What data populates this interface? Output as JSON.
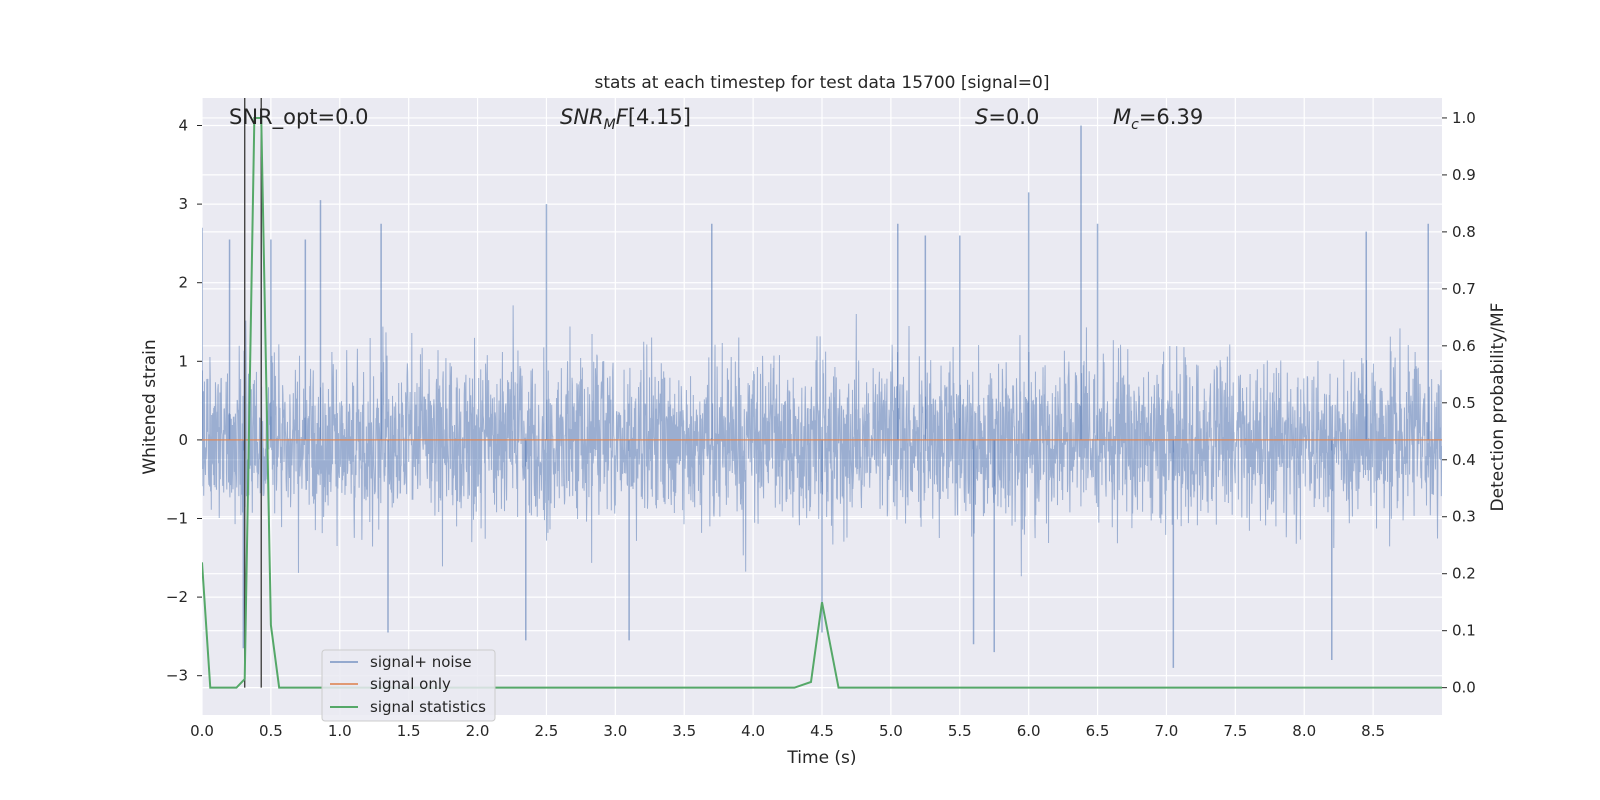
{
  "chart_data": {
    "type": "line",
    "title": "stats at each timestep for test data 15700 [signal=0]",
    "xlabel": "Time (s)",
    "ylabel_left": "Whitened strain",
    "ylabel_right": "Detection probability/MF",
    "xlim": [
      0.0,
      9.0
    ],
    "ylim_left": [
      -3.5,
      4.35
    ],
    "ylim_right": [
      -0.048,
      1.035
    ],
    "x_ticks": [
      "0.0",
      "0.5",
      "1.0",
      "1.5",
      "2.0",
      "2.5",
      "3.0",
      "3.5",
      "4.0",
      "4.5",
      "5.0",
      "5.5",
      "6.0",
      "6.5",
      "7.0",
      "7.5",
      "8.0",
      "8.5"
    ],
    "y_left_ticks": [
      "4",
      "3",
      "2",
      "1",
      "0",
      "−1",
      "−2",
      "−3"
    ],
    "y_right_ticks": [
      "1.0",
      "0.9",
      "0.8",
      "0.7",
      "0.6",
      "0.5",
      "0.4",
      "0.3",
      "0.2",
      "0.1",
      "0.0"
    ],
    "grid": true,
    "legend_location": "lower left",
    "colors": {
      "background": "#eaeaf2",
      "grid": "#ffffff",
      "noise": "#4c72b0",
      "signal": "#dd8452",
      "statistics": "#55a868",
      "marker_lines": "#444444"
    },
    "annotations": [
      {
        "id": "snr-opt",
        "text": "SNR_opt=0.0",
        "x": 0.18
      },
      {
        "id": "snr-mf",
        "text": "[4.15]",
        "x": 2.6
      },
      {
        "id": "s-value",
        "text": "=0.0",
        "x": 5.6
      },
      {
        "id": "mc-value",
        "text": "=6.39",
        "x": 6.6
      }
    ],
    "vertical_markers": [
      0.31,
      0.43
    ],
    "series": [
      {
        "name": "signal+ noise",
        "kind": "noise",
        "amplitude_envelope": {
          "typical_max": 1.8,
          "typical_min": -1.8
        },
        "peaks": [
          [
            0.0,
            2.7
          ],
          [
            0.2,
            2.55
          ],
          [
            0.43,
            3.6
          ],
          [
            0.5,
            2.55
          ],
          [
            0.75,
            2.55
          ],
          [
            0.86,
            3.05
          ],
          [
            1.3,
            2.75
          ],
          [
            2.5,
            3.0
          ],
          [
            3.7,
            2.75
          ],
          [
            5.05,
            2.75
          ],
          [
            5.25,
            2.6
          ],
          [
            5.5,
            2.6
          ],
          [
            6.0,
            3.15
          ],
          [
            6.38,
            4.0
          ],
          [
            6.5,
            2.75
          ],
          [
            8.45,
            2.65
          ],
          [
            8.9,
            2.75
          ],
          [
            1.35,
            -2.45
          ],
          [
            2.35,
            -2.55
          ],
          [
            3.1,
            -2.55
          ],
          [
            4.5,
            -2.45
          ],
          [
            5.6,
            -2.6
          ],
          [
            5.75,
            -2.7
          ],
          [
            7.05,
            -2.9
          ],
          [
            8.2,
            -2.8
          ],
          [
            0.3,
            -2.65
          ]
        ]
      },
      {
        "name": "signal only",
        "kind": "flat",
        "points": [
          [
            0.0,
            0.0
          ],
          [
            9.0,
            0.0
          ]
        ]
      },
      {
        "name": "signal statistics",
        "kind": "right-axis",
        "points": [
          [
            0.0,
            0.22
          ],
          [
            0.06,
            0.0
          ],
          [
            0.25,
            0.0
          ],
          [
            0.31,
            0.015
          ],
          [
            0.38,
            1.0
          ],
          [
            0.43,
            1.0
          ],
          [
            0.5,
            0.11
          ],
          [
            0.56,
            0.0
          ],
          [
            4.3,
            0.0
          ],
          [
            4.42,
            0.01
          ],
          [
            4.5,
            0.15
          ],
          [
            4.62,
            0.0
          ],
          [
            4.75,
            0.0
          ],
          [
            5.0,
            0.0
          ],
          [
            9.0,
            0.0
          ]
        ]
      }
    ]
  }
}
